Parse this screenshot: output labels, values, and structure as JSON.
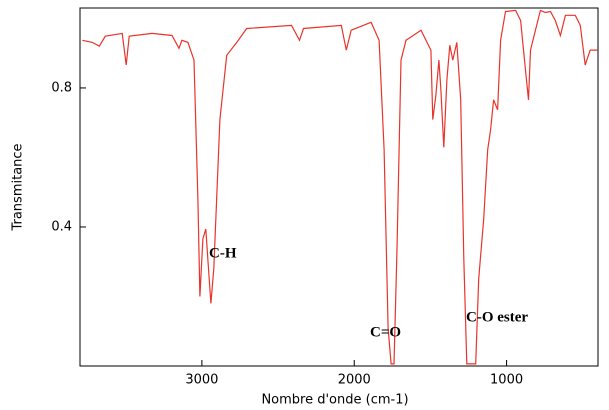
{
  "chart_data": {
    "type": "line",
    "x_label": "Nombre d'onde (cm-1)",
    "y_label": "Transmitance",
    "x": [
      3784,
      3719,
      3673,
      3634,
      3523,
      3497,
      3477,
      3327,
      3196,
      3150,
      3131,
      3092,
      3052,
      3026,
      3013,
      2993,
      2974,
      2961,
      2941,
      2922,
      2882,
      2837,
      2771,
      2706,
      2412,
      2359,
      2333,
      2085,
      2052,
      2020,
      1889,
      1837,
      1804,
      1778,
      1758,
      1739,
      1719,
      1693,
      1660,
      1562,
      1497,
      1484,
      1464,
      1444,
      1431,
      1412,
      1392,
      1373,
      1353,
      1327,
      1301,
      1281,
      1261,
      1203,
      1183,
      1150,
      1124,
      1105,
      1085,
      1059,
      1039,
      1007,
      941,
      908,
      876,
      856,
      843,
      778,
      745,
      712,
      680,
      647,
      614,
      549,
      516,
      484,
      451,
      405
    ],
    "series": [
      {
        "color": "#e8342a",
        "values": [
          0.937,
          0.931,
          0.92,
          0.949,
          0.957,
          0.866,
          0.949,
          0.957,
          0.951,
          0.914,
          0.937,
          0.931,
          0.88,
          0.48,
          0.2,
          0.366,
          0.394,
          0.309,
          0.18,
          0.28,
          0.709,
          0.894,
          0.931,
          0.971,
          0.98,
          0.937,
          0.971,
          0.98,
          0.909,
          0.966,
          0.989,
          0.937,
          0.623,
          0.109,
          0.006,
          0.006,
          0.337,
          0.88,
          0.937,
          0.966,
          0.909,
          0.709,
          0.78,
          0.88,
          0.794,
          0.629,
          0.823,
          0.923,
          0.88,
          0.931,
          0.766,
          0.309,
          0.006,
          0.006,
          0.251,
          0.423,
          0.623,
          0.68,
          0.766,
          0.737,
          0.937,
          1.02,
          1.023,
          0.994,
          0.851,
          0.766,
          0.909,
          1.023,
          1.017,
          1.02,
          0.994,
          0.951,
          1.009,
          1.009,
          0.98,
          0.866,
          0.909,
          0.909
        ]
      }
    ],
    "xlim": [
      3800,
      400
    ],
    "ylim": [
      0,
      1.03
    ],
    "xticks": [
      3000,
      2000,
      1000
    ],
    "yticks": [
      0.4,
      0.8
    ],
    "annotations": [
      "C-H",
      "C=O",
      "C-O ester"
    ]
  }
}
